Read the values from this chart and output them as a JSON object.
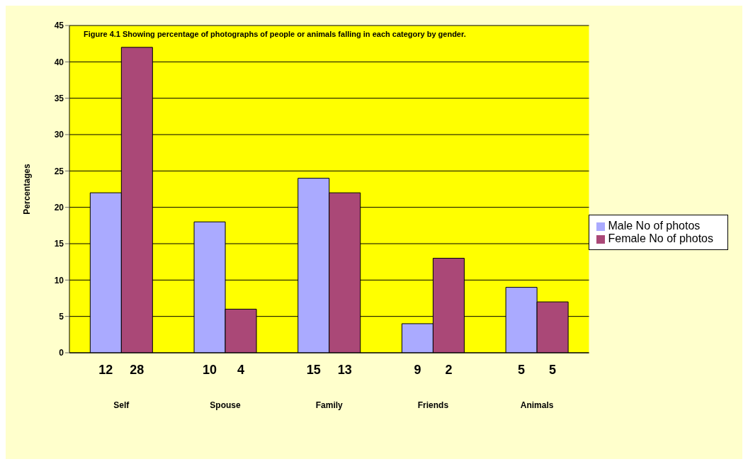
{
  "chart_data": {
    "type": "bar",
    "title": "Figure 4.1 Showing percentage of photographs of people or animals falling in each category by gender.",
    "ylabel": "Percentages",
    "categories": [
      "Self",
      "Spouse",
      "Family",
      "Friends",
      "Animals"
    ],
    "series": [
      {
        "name": "Male No of photos",
        "color": "#aaaaff",
        "values": [
          22,
          18,
          24,
          4,
          9
        ]
      },
      {
        "name": "Female No of photos",
        "color": "#aa4877",
        "values": [
          42,
          6,
          22,
          13,
          7
        ]
      }
    ],
    "annotations": [
      "12",
      "28",
      "10",
      "4",
      "15",
      "13",
      "9",
      "2",
      "5",
      "5"
    ],
    "ylim": [
      0,
      45
    ],
    "yticks": [
      0,
      5,
      10,
      15,
      20,
      25,
      30,
      35,
      40,
      45
    ],
    "grid": "y",
    "legend": "right"
  }
}
